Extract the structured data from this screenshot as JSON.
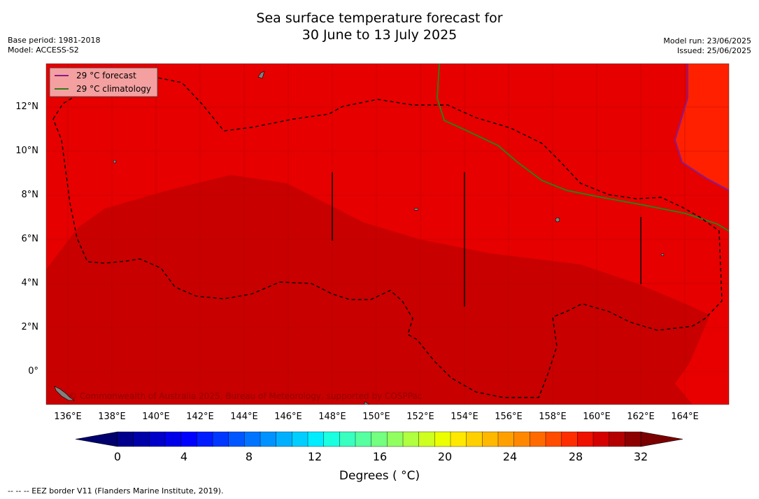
{
  "title": {
    "line1": "Sea surface temperature forecast for",
    "line2": "30 June to 13 July 2025"
  },
  "meta_left": {
    "base_period": "Base period: 1981-2018",
    "model": "Model: ACCESS-S2"
  },
  "meta_right": {
    "model_run": "Model run: 23/06/2025",
    "issued": "Issued: 25/06/2025"
  },
  "legend": {
    "forecast": "29 °C  forecast",
    "climatology": "29 °C  climatology",
    "forecast_color": "#8b1a8b",
    "climatology_color": "#2e7d1a"
  },
  "lat_ticks": [
    "12°N",
    "10°N",
    "8°N",
    "6°N",
    "4°N",
    "2°N",
    "0°"
  ],
  "lon_ticks": [
    "136°E",
    "138°E",
    "140°E",
    "142°E",
    "144°E",
    "146°E",
    "148°E",
    "150°E",
    "152°E",
    "154°E",
    "156°E",
    "158°E",
    "160°E",
    "162°E",
    "164°E"
  ],
  "watermark": "© Commonwealth of Australia 2025, Bureau of Meteorology, supported by COSPPac",
  "colorbar": {
    "ticks": [
      "0",
      "4",
      "8",
      "12",
      "16",
      "20",
      "24",
      "28",
      "32"
    ],
    "label": "Degrees ( °C)",
    "colors": [
      "#00008c",
      "#0000a8",
      "#0000c8",
      "#0000e8",
      "#0000ff",
      "#001cff",
      "#0038ff",
      "#0056ff",
      "#0074ff",
      "#0092ff",
      "#00b0ff",
      "#00ceff",
      "#00ecff",
      "#1affe0",
      "#38ffc0",
      "#56ffa0",
      "#74ff80",
      "#92ff60",
      "#b0ff40",
      "#ceff20",
      "#ecff00",
      "#ffe800",
      "#ffd000",
      "#ffb800",
      "#ffa000",
      "#ff8800",
      "#ff6a00",
      "#ff4c00",
      "#ff2e00",
      "#ee1000",
      "#d40000",
      "#b40000",
      "#8c0000"
    ],
    "under_color": "#00006e",
    "over_color": "#7a0000"
  },
  "map_colors": {
    "band_28_29": "#e60000",
    "band_29_30": "#c80000",
    "band_27_28": "#ff2000",
    "eez_line": "#000000"
  },
  "footer": "--  --  -- EEZ border V11 (Flanders Marine Institute, 2019)."
}
